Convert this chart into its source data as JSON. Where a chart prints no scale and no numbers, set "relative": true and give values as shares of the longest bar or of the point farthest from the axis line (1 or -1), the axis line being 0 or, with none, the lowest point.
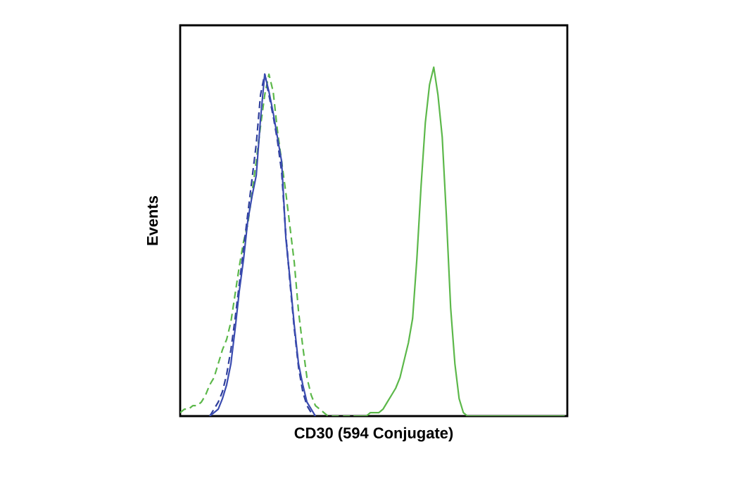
{
  "chart_data": {
    "type": "line",
    "relative": true,
    "xlabel": "CD30 (594 Conjugate)",
    "ylabel": "Events",
    "marker": "none",
    "categories": [
      null,
      null,
      null,
      null,
      null,
      null,
      null,
      null,
      null,
      null,
      null,
      null,
      null,
      null,
      null,
      null,
      null,
      null,
      null,
      null,
      null,
      null,
      null,
      null,
      null,
      null,
      null,
      null,
      null,
      null,
      null,
      null,
      null,
      null,
      null,
      null,
      null,
      null,
      null,
      null,
      null,
      null,
      null,
      null,
      null,
      null,
      null,
      null,
      null,
      null,
      null,
      null,
      null,
      null,
      null,
      null,
      null,
      null,
      null,
      null,
      null,
      null,
      null,
      null,
      null,
      null,
      null,
      null,
      null,
      null,
      null,
      null,
      null,
      null,
      null,
      null,
      null,
      null,
      null,
      null,
      null,
      null,
      null,
      null,
      null,
      null,
      null,
      null,
      null,
      null,
      null,
      null
    ],
    "series": [
      {
        "color": "#5cb84a",
        "line_style": "dashed",
        "values": [
          0.01,
          0.02,
          0.02,
          0.03,
          0.03,
          0.04,
          0.06,
          0.09,
          0.11,
          0.15,
          0.19,
          0.22,
          0.27,
          0.35,
          0.43,
          0.5,
          0.55,
          0.64,
          0.73,
          0.83,
          0.92,
          0.98,
          0.93,
          0.82,
          0.73,
          0.64,
          0.54,
          0.44,
          0.3,
          0.2,
          0.11,
          0.06,
          0.03,
          0.02,
          0.01,
          0,
          0,
          0,
          0,
          0,
          0,
          0,
          0,
          0,
          0,
          null,
          null,
          null,
          null,
          null,
          null,
          null,
          null,
          null,
          null,
          null,
          null,
          null,
          null,
          null,
          null,
          null,
          null,
          null,
          null,
          null,
          null,
          null,
          null,
          null,
          null,
          null,
          null,
          null,
          null,
          null,
          null,
          null,
          null,
          null,
          null,
          null,
          null,
          null,
          null,
          null,
          null,
          null,
          null,
          null,
          null,
          null
        ]
      },
      {
        "color": "#2f3f9c",
        "line_style": "dashed",
        "values": [
          null,
          null,
          null,
          null,
          null,
          null,
          null,
          0,
          0.02,
          0.04,
          0.07,
          0.12,
          0.19,
          0.28,
          0.38,
          0.48,
          0.58,
          0.68,
          0.78,
          0.92,
          0.98,
          0.92,
          0.86,
          0.79,
          0.7,
          0.52,
          0.38,
          0.25,
          0.14,
          0.07,
          0.03,
          0.01,
          0,
          null,
          null,
          null,
          null,
          null,
          null,
          null,
          null,
          null,
          null,
          null,
          null,
          null,
          null,
          null,
          null,
          null,
          null,
          null,
          null,
          null,
          null,
          null,
          null,
          null,
          null,
          null,
          null,
          null,
          null,
          null,
          null,
          null,
          null,
          null,
          null,
          null,
          null,
          null,
          null,
          null,
          null,
          null,
          null,
          null,
          null,
          null,
          null,
          null,
          null,
          null,
          null,
          null,
          null,
          null,
          null,
          null,
          null,
          null
        ]
      },
      {
        "color": "#3a4bb0",
        "line_style": "solid",
        "values": [
          null,
          null,
          null,
          null,
          null,
          null,
          null,
          0,
          0.01,
          0.02,
          0.05,
          0.09,
          0.15,
          0.25,
          0.36,
          0.45,
          0.56,
          0.63,
          0.69,
          0.85,
          0.98,
          0.93,
          0.87,
          0.8,
          0.73,
          0.51,
          0.39,
          0.26,
          0.15,
          0.09,
          0.04,
          0.02,
          0,
          null,
          null,
          null,
          null,
          null,
          null,
          null,
          null,
          null,
          null,
          null,
          null,
          null,
          null,
          null,
          null,
          null,
          null,
          null,
          null,
          null,
          null,
          null,
          null,
          null,
          null,
          null,
          null,
          null,
          null,
          null,
          null,
          null,
          null,
          null,
          null,
          null,
          null,
          null,
          null,
          null,
          null,
          null,
          null,
          null,
          null,
          null,
          null,
          null,
          null,
          null,
          null,
          null,
          null,
          null,
          null,
          null,
          null,
          null
        ]
      },
      {
        "color": "#5cb84a",
        "line_style": "solid",
        "values": [
          null,
          null,
          null,
          null,
          null,
          null,
          null,
          null,
          null,
          null,
          null,
          null,
          null,
          null,
          null,
          null,
          null,
          null,
          null,
          null,
          null,
          null,
          null,
          null,
          null,
          null,
          null,
          null,
          null,
          null,
          null,
          null,
          null,
          null,
          null,
          null,
          null,
          null,
          null,
          null,
          null,
          0,
          0,
          0,
          0,
          0.01,
          0.01,
          0.01,
          0.02,
          0.04,
          0.06,
          0.08,
          0.11,
          0.16,
          0.21,
          0.28,
          0.45,
          0.66,
          0.84,
          0.95,
          1.0,
          0.92,
          0.8,
          0.57,
          0.31,
          0.15,
          0.05,
          0.01,
          0,
          0,
          0,
          0,
          0,
          0,
          0,
          0,
          0,
          0,
          0,
          0,
          0,
          0,
          0,
          0,
          0,
          0,
          0,
          0,
          0,
          0,
          0,
          0
        ]
      }
    ]
  }
}
